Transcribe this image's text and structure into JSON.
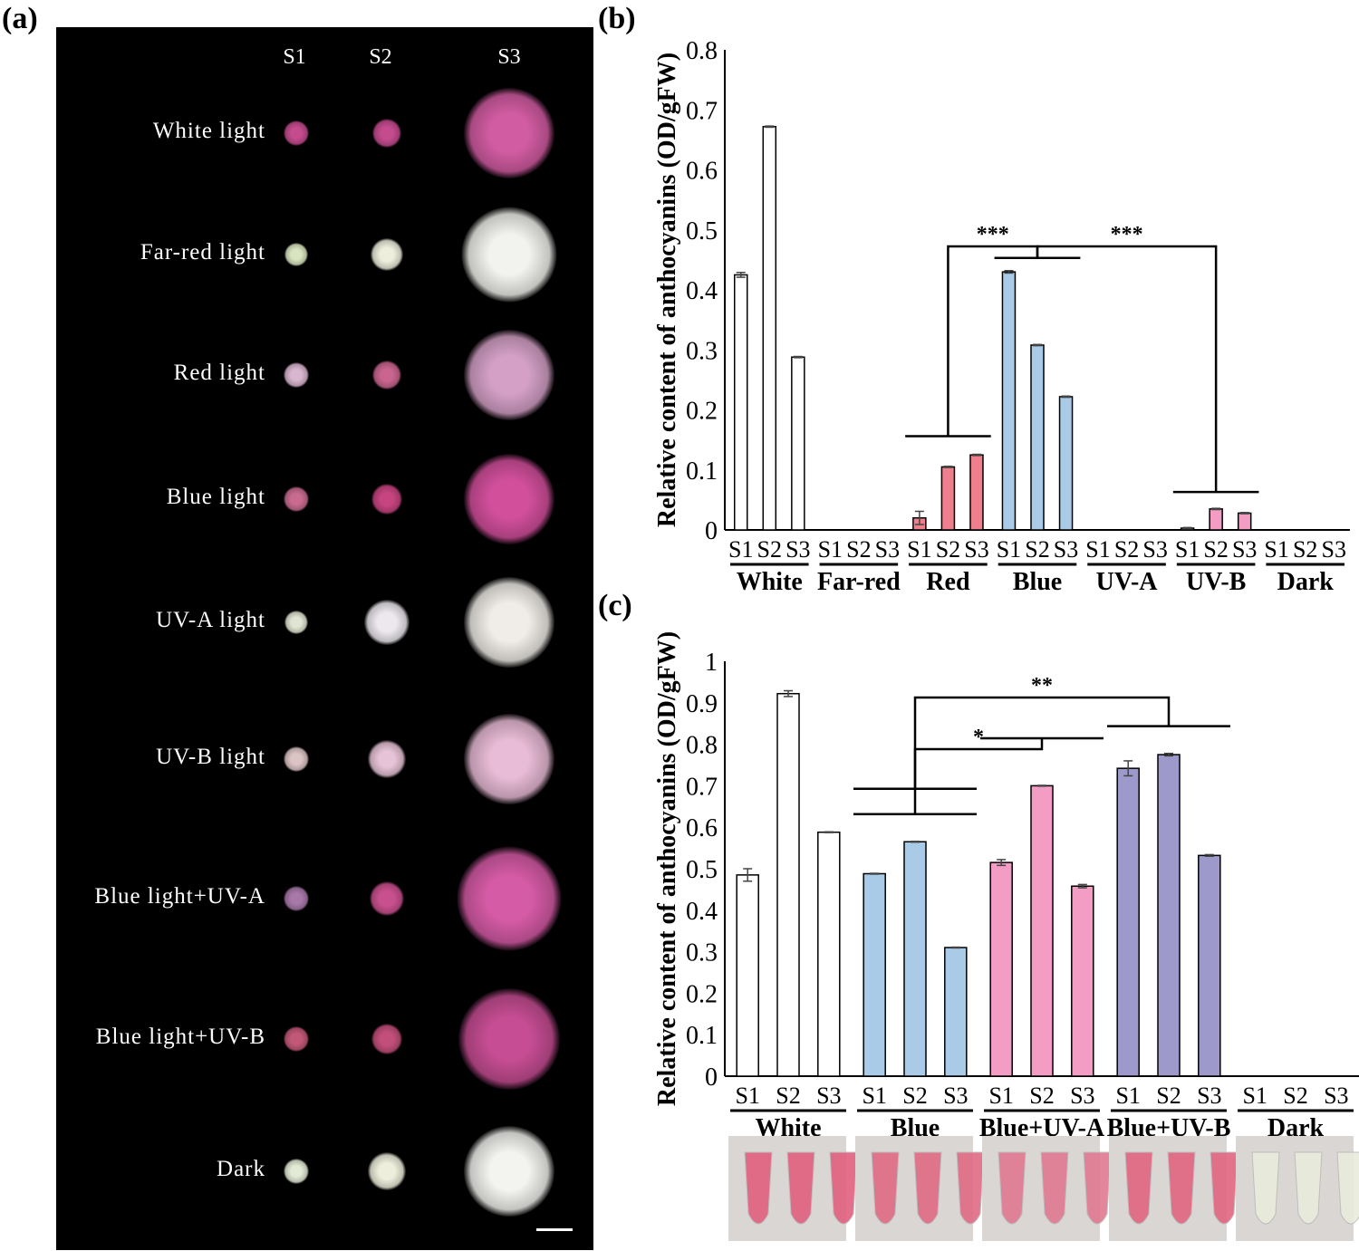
{
  "figure": {
    "panel_a_label": "(a)",
    "panel_b_label": "(b)",
    "panel_c_label": "(c)"
  },
  "photo_panel": {
    "stages": [
      "S1",
      "S2",
      "S3"
    ],
    "rows": [
      {
        "label": "White light",
        "colors": [
          "#c44b8e",
          "#c44b8e",
          "#d25ca2"
        ]
      },
      {
        "label": "Far-red light",
        "colors": [
          "#d8e4c0",
          "#eeeedd",
          "#f2f2ee"
        ]
      },
      {
        "label": "Red light",
        "colors": [
          "#d9b6cf",
          "#c9658f",
          "#d4a0c6"
        ]
      },
      {
        "label": "Blue light",
        "colors": [
          "#c96b8f",
          "#c6447f",
          "#d24f9c"
        ]
      },
      {
        "label": "UV-A light",
        "colors": [
          "#e0e4d2",
          "#ece8ee",
          "#f0ede8"
        ]
      },
      {
        "label": "UV-B light",
        "colors": [
          "#dcc4c4",
          "#e6c3d6",
          "#e8bbd6"
        ]
      },
      {
        "label": "Blue light+UV-A",
        "colors": [
          "#a878a8",
          "#c9508e",
          "#d65ba6"
        ]
      },
      {
        "label": "Blue light+UV-B",
        "colors": [
          "#c25878",
          "#c24f7a",
          "#c64d93"
        ]
      },
      {
        "label": "Dark",
        "colors": [
          "#e2ead6",
          "#eeeedc",
          "#f3f3f0"
        ]
      }
    ]
  },
  "chart_data": [
    {
      "id": "b",
      "type": "bar",
      "ylabel": "Relative content of anthocyanins (OD/gFW)",
      "ylim": [
        0,
        0.8
      ],
      "yticks": [
        "0",
        "0.1",
        "0.2",
        "0.3",
        "0.4",
        "0.5",
        "0.6",
        "0.7",
        "0.8"
      ],
      "stages": [
        "S1",
        "S2",
        "S3"
      ],
      "groups": [
        {
          "name": "White",
          "color": "#ffffff",
          "values": [
            0.425,
            0.672,
            0.288
          ],
          "errors": [
            0.004,
            0.001,
            0.001
          ]
        },
        {
          "name": "Far-red",
          "color": "#ffffff",
          "values": [
            0,
            0,
            0
          ],
          "errors": [
            0,
            0,
            0
          ]
        },
        {
          "name": "Red",
          "color": "#f07f8e",
          "values": [
            0.02,
            0.105,
            0.125
          ],
          "errors": [
            0.011,
            0.001,
            0.001
          ]
        },
        {
          "name": "Blue",
          "color": "#a9cbe8",
          "values": [
            0.43,
            0.308,
            0.222
          ],
          "errors": [
            0.002,
            0.001,
            0.001
          ]
        },
        {
          "name": "UV-A",
          "color": "#ffffff",
          "values": [
            0,
            0,
            0
          ],
          "errors": [
            0,
            0,
            0
          ]
        },
        {
          "name": "UV-B",
          "color": "#f39cc4",
          "values": [
            0.003,
            0.035,
            0.028
          ],
          "errors": [
            0.001,
            0.001,
            0.001
          ]
        },
        {
          "name": "Dark",
          "color": "#ffffff",
          "values": [
            0,
            0,
            0
          ],
          "errors": [
            0,
            0,
            0
          ]
        }
      ],
      "significance": [
        {
          "label": "***",
          "from": "Red",
          "to": "Blue"
        },
        {
          "label": "***",
          "from": "Blue",
          "to": "UV-B"
        }
      ]
    },
    {
      "id": "c",
      "type": "bar",
      "ylabel": "Relative content of anthocyanins (OD/gFW)",
      "ylim": [
        0,
        1
      ],
      "yticks": [
        "0",
        "0.1",
        "0.2",
        "0.3",
        "0.4",
        "0.5",
        "0.6",
        "0.7",
        "0.8",
        "0.9",
        "1"
      ],
      "stages": [
        "S1",
        "S2",
        "S3"
      ],
      "groups": [
        {
          "name": "White",
          "color": "#ffffff",
          "values": [
            0.485,
            0.922,
            0.588
          ],
          "errors": [
            0.015,
            0.007,
            0.001
          ]
        },
        {
          "name": "Blue",
          "color": "#a9cbe8",
          "values": [
            0.488,
            0.565,
            0.31
          ],
          "errors": [
            0.001,
            0.001,
            0.001
          ]
        },
        {
          "name": "Blue+UV-A",
          "color": "#f39cc4",
          "values": [
            0.515,
            0.7,
            0.458
          ],
          "errors": [
            0.007,
            0.001,
            0.004
          ]
        },
        {
          "name": "Blue+UV-B",
          "color": "#9d9acb",
          "values": [
            0.742,
            0.775,
            0.532
          ],
          "errors": [
            0.018,
            0.003,
            0.002
          ]
        },
        {
          "name": "Dark",
          "color": "#ffffff",
          "values": [
            0,
            0,
            0
          ],
          "errors": [
            0,
            0,
            0
          ]
        }
      ],
      "significance": [
        {
          "label": "*",
          "from": "Blue",
          "to": "Blue+UV-A"
        },
        {
          "label": "**",
          "from": "Blue",
          "to": "Blue+UV-B"
        }
      ],
      "tube_colors": [
        "#e0607e",
        "#df6b84",
        "#e07a92",
        "#e0667f",
        "#e9ecdc"
      ]
    }
  ]
}
